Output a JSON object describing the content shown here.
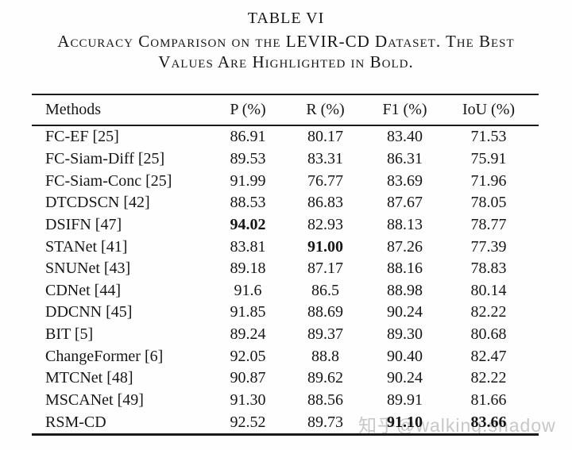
{
  "page": {
    "title": "TABLE VI",
    "subtitle_line1": "Accuracy Comparison on the LEVIR-CD Dataset. The Best",
    "subtitle_line2": "Values Are Highlighted in Bold.",
    "watermark": "知乎@walking.shadow"
  },
  "table": {
    "columns": [
      "Methods",
      "P (%)",
      "R (%)",
      "F1 (%)",
      "IoU (%)"
    ],
    "rows": [
      {
        "method": "FC-EF [25]",
        "values": [
          "86.91",
          "80.17",
          "83.40",
          "71.53"
        ],
        "bold": []
      },
      {
        "method": "FC-Siam-Diff [25]",
        "values": [
          "89.53",
          "83.31",
          "86.31",
          "75.91"
        ],
        "bold": []
      },
      {
        "method": "FC-Siam-Conc [25]",
        "values": [
          "91.99",
          "76.77",
          "83.69",
          "71.96"
        ],
        "bold": []
      },
      {
        "method": "DTCDSCN [42]",
        "values": [
          "88.53",
          "86.83",
          "87.67",
          "78.05"
        ],
        "bold": []
      },
      {
        "method": "DSIFN [47]",
        "values": [
          "94.02",
          "82.93",
          "88.13",
          "78.77"
        ],
        "bold": [
          0
        ]
      },
      {
        "method": "STANet [41]",
        "values": [
          "83.81",
          "91.00",
          "87.26",
          "77.39"
        ],
        "bold": [
          1
        ]
      },
      {
        "method": "SNUNet [43]",
        "values": [
          "89.18",
          "87.17",
          "88.16",
          "78.83"
        ],
        "bold": []
      },
      {
        "method": "CDNet [44]",
        "values": [
          "91.6",
          "86.5",
          "88.98",
          "80.14"
        ],
        "bold": []
      },
      {
        "method": "DDCNN [45]",
        "values": [
          "91.85",
          "88.69",
          "90.24",
          "82.22"
        ],
        "bold": []
      },
      {
        "method": "BIT [5]",
        "values": [
          "89.24",
          "89.37",
          "89.30",
          "80.68"
        ],
        "bold": []
      },
      {
        "method": "ChangeFormer [6]",
        "values": [
          "92.05",
          "88.8",
          "90.40",
          "82.47"
        ],
        "bold": []
      },
      {
        "method": "MTCNet [48]",
        "values": [
          "90.87",
          "89.62",
          "90.24",
          "82.22"
        ],
        "bold": []
      },
      {
        "method": "MSCANet [49]",
        "values": [
          "91.30",
          "88.56",
          "89.91",
          "81.66"
        ],
        "bold": []
      },
      {
        "method": "RSM-CD",
        "values": [
          "92.52",
          "89.73",
          "91.10",
          "83.66"
        ],
        "bold": [
          2,
          3
        ]
      }
    ]
  }
}
